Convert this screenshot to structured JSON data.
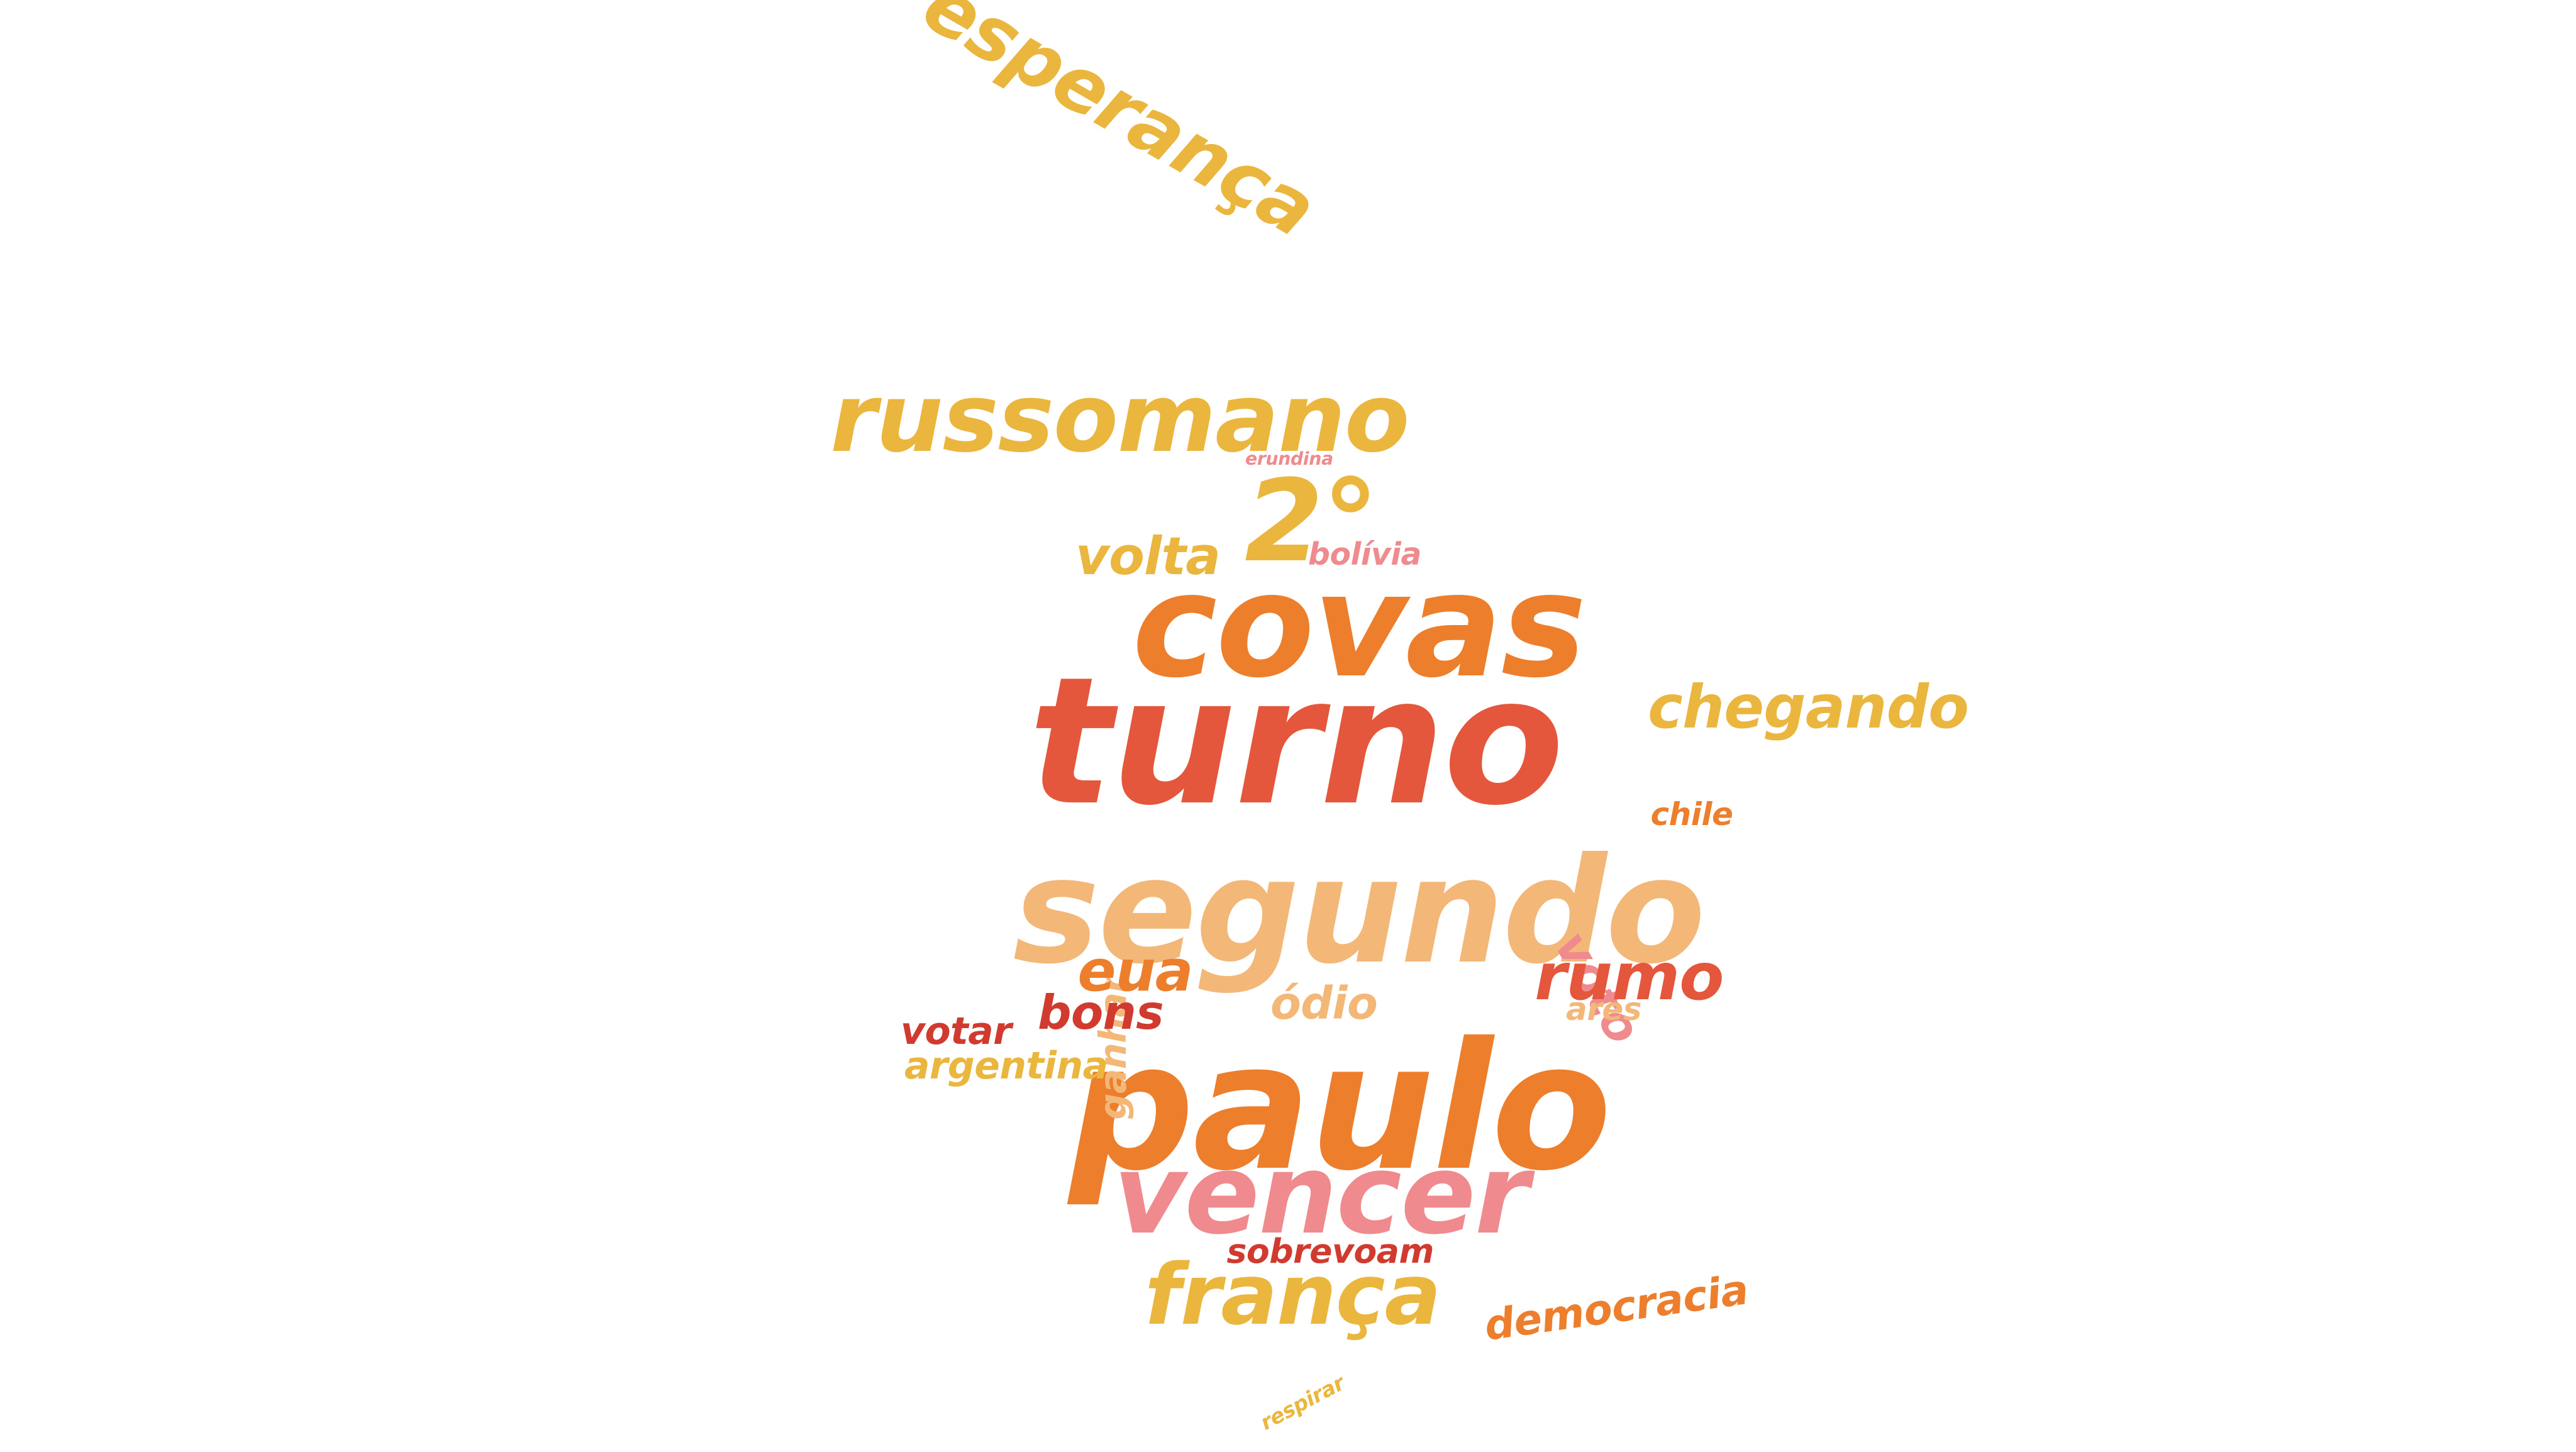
{
  "palette": {
    "red": "#e4573d",
    "orange": "#ec7e2c",
    "gold": "#eab63e",
    "peach": "#f3b878",
    "pink": "#ef8a8e",
    "crimson": "#d13b2f",
    "background": "#ffffff"
  },
  "words": [
    {
      "text": "turno",
      "color": "#e4573d"
    },
    {
      "text": "segundo",
      "color": "#f3b878"
    },
    {
      "text": "paulo",
      "color": "#ec7e2c"
    },
    {
      "text": "covas",
      "color": "#ec7e2c"
    },
    {
      "text": "esperança",
      "color": "#eab63e"
    },
    {
      "text": "russomano",
      "color": "#eab63e"
    },
    {
      "text": "ganhar",
      "color": "#f3b878"
    },
    {
      "text": "vencer",
      "color": "#ef8a8e"
    },
    {
      "text": "frança",
      "color": "#eab63e"
    },
    {
      "text": "chegando",
      "color": "#eab63e"
    },
    {
      "text": "2°",
      "color": "#eab63e"
    },
    {
      "text": "voto",
      "color": "#ef8a8e"
    },
    {
      "text": "democracia",
      "color": "#ec7e2c"
    },
    {
      "text": "volta",
      "color": "#eab63e"
    },
    {
      "text": "rumo",
      "color": "#e4573d"
    },
    {
      "text": "eua",
      "color": "#ec7e2c"
    },
    {
      "text": "bons",
      "color": "#d13b2f"
    },
    {
      "text": "ódio",
      "color": "#f3b878"
    },
    {
      "text": "argentina",
      "color": "#eab63e"
    },
    {
      "text": "votar",
      "color": "#d13b2f"
    },
    {
      "text": "bolívia",
      "color": "#ef8a8e"
    },
    {
      "text": "respirar",
      "color": "#eab63e"
    },
    {
      "text": "sobrevoam",
      "color": "#d13b2f"
    },
    {
      "text": "chile",
      "color": "#ec7e2c"
    },
    {
      "text": "ares",
      "color": "#f3b878"
    },
    {
      "text": "erundina",
      "color": "#ef8a8e"
    }
  ]
}
